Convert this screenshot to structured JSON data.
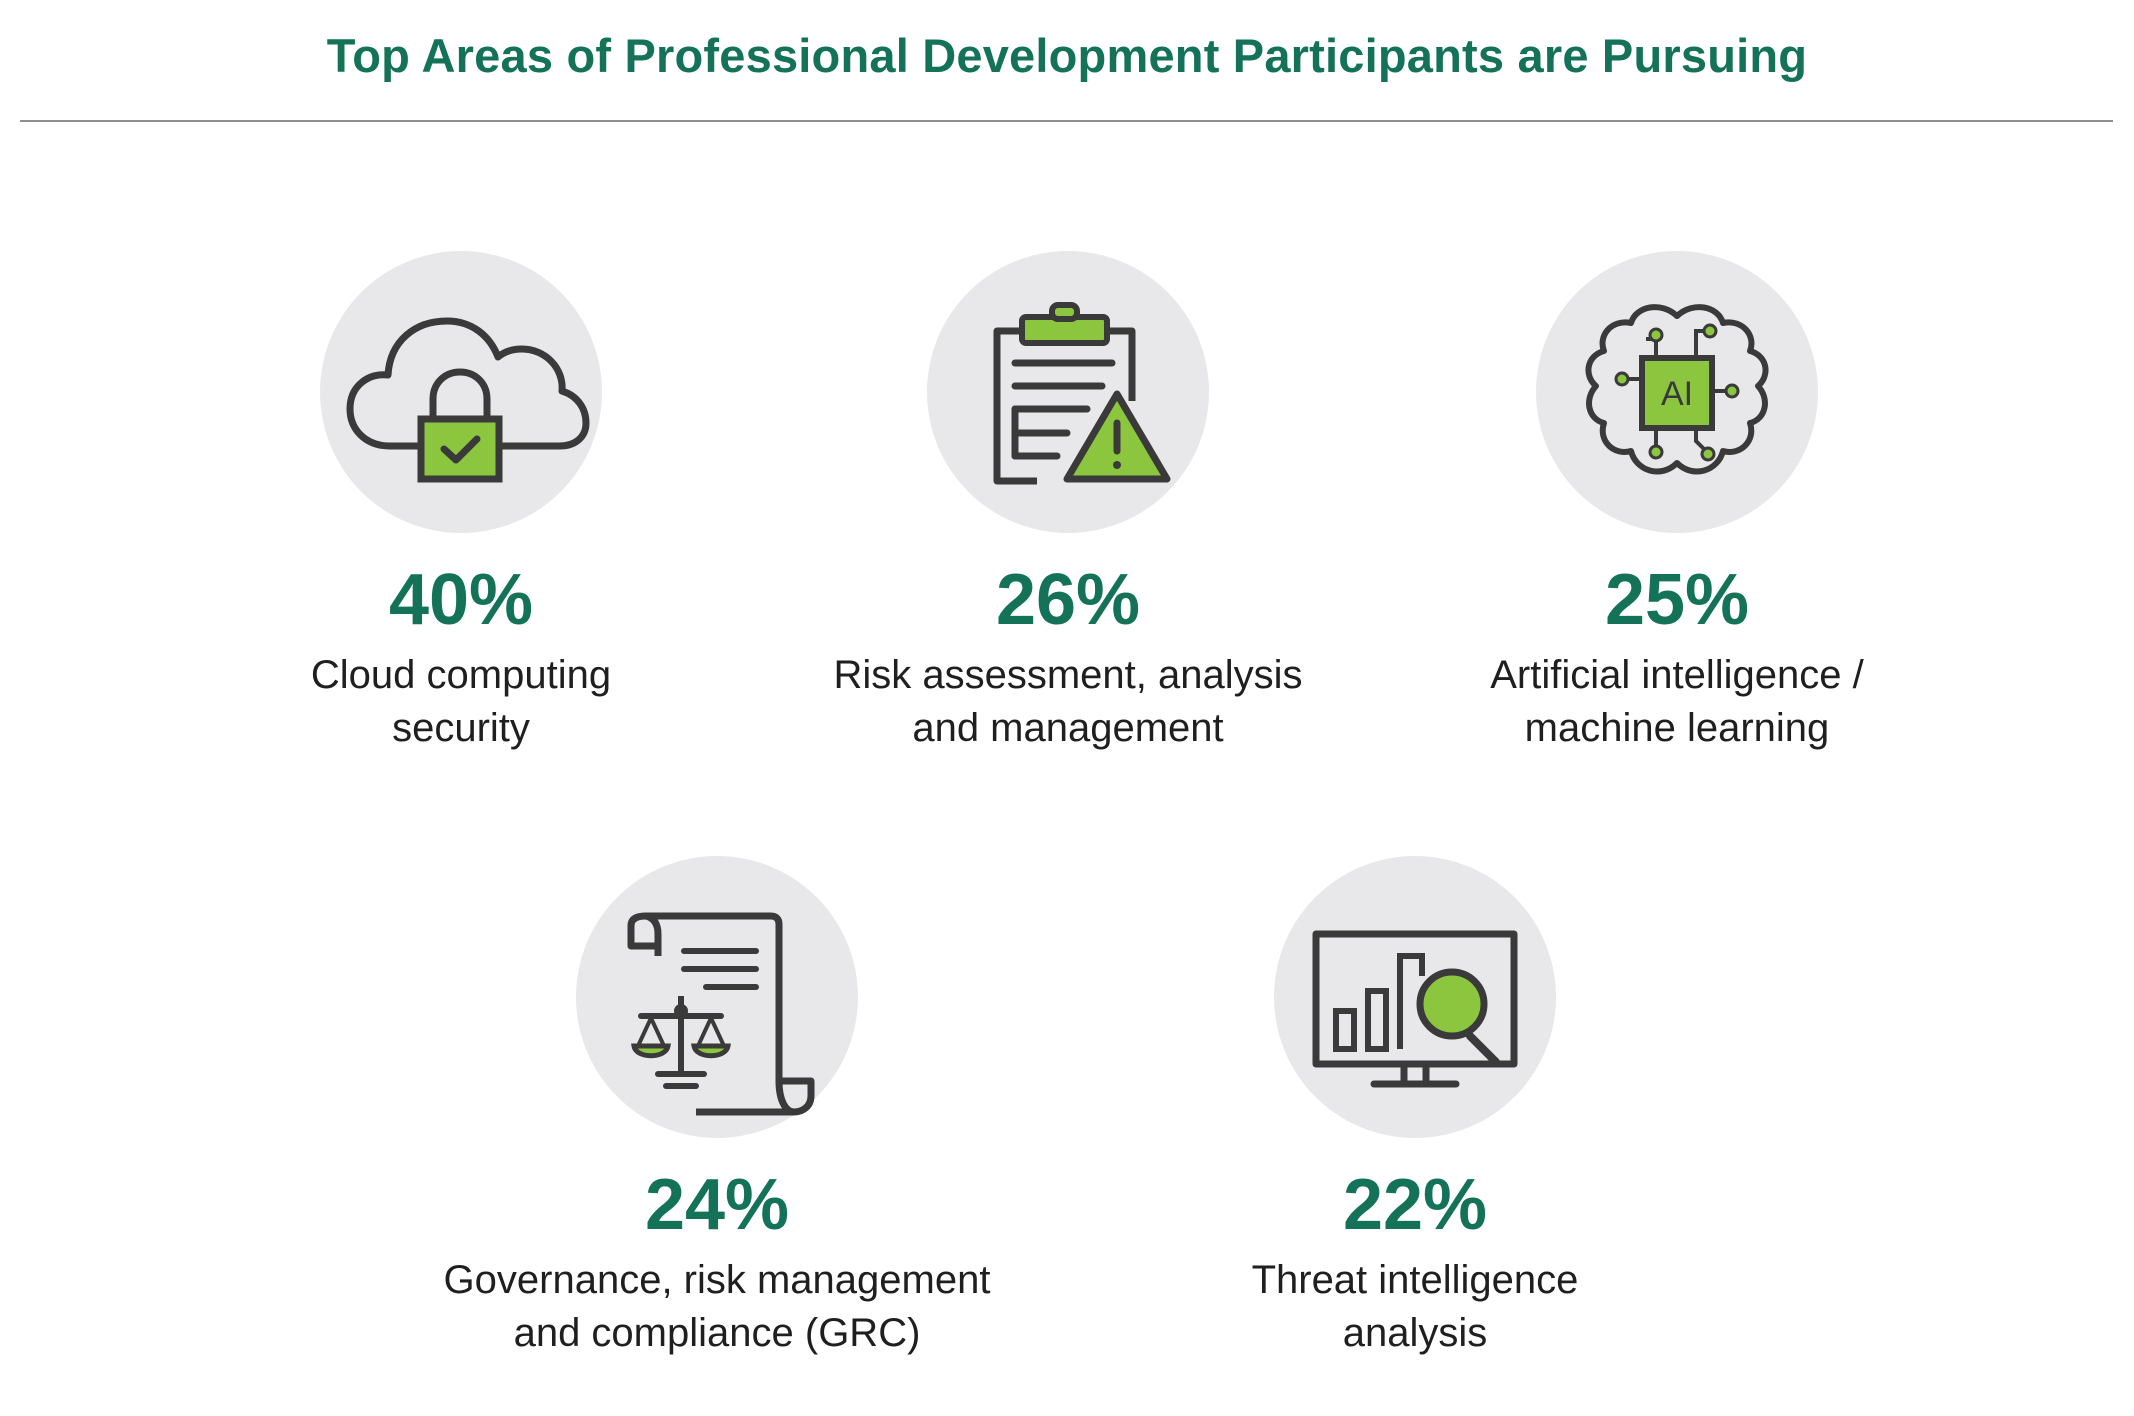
{
  "title": "Top Areas of Professional Development Participants are Pursuing",
  "colors": {
    "accent_green": "#137258",
    "icon_fill_green": "#8cc63f",
    "icon_stroke": "#3a3a3a",
    "circle_bg": "#e8e8eb",
    "divider": "#8f8f8f"
  },
  "stats": [
    {
      "percent": "40%",
      "label_line1": "Cloud computing",
      "label_line2": "security",
      "icon": "cloud-lock-icon"
    },
    {
      "percent": "26%",
      "label_line1": "Risk assessment, analysis",
      "label_line2": "and management",
      "icon": "clipboard-warning-icon"
    },
    {
      "percent": "25%",
      "label_line1": "Artificial intelligence /",
      "label_line2": "machine learning",
      "icon": "ai-brain-icon",
      "icon_text": "AI"
    },
    {
      "percent": "24%",
      "label_line1": "Governance, risk management",
      "label_line2": "and compliance (GRC)",
      "icon": "scroll-scales-icon"
    },
    {
      "percent": "22%",
      "label_line1": "Threat intelligence",
      "label_line2": "analysis",
      "icon": "monitor-magnifier-icon"
    }
  ]
}
